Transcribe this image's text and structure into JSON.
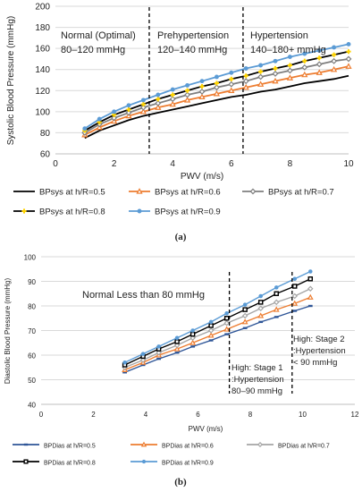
{
  "chart_data": [
    {
      "type": "line",
      "tag": "(a)",
      "xlabel": "PWV (m/s)",
      "ylabel": "Systolic Blood Pressure (mmHg)",
      "xlim": [
        0,
        10
      ],
      "ylim": [
        60,
        200
      ],
      "xticks": [
        0,
        2,
        4,
        6,
        8,
        10
      ],
      "yticks": [
        60,
        80,
        100,
        120,
        140,
        160,
        180,
        200
      ],
      "grid": "horizontal",
      "legend_position": "bottom",
      "x": [
        1,
        1.5,
        2,
        2.5,
        3,
        3.5,
        4,
        4.5,
        5,
        5.5,
        6,
        6.5,
        7,
        7.5,
        8,
        8.5,
        9,
        9.5,
        10
      ],
      "series": [
        {
          "name": "BPsys at h/R=0.5",
          "color": "#000000",
          "marker": "none",
          "values": [
            75,
            82,
            87,
            92,
            96,
            99,
            102,
            105,
            108,
            111,
            114,
            116,
            119,
            121,
            124,
            127,
            129,
            131,
            134
          ]
        },
        {
          "name": "BPsys at h/R=0.6",
          "color": "#ed7d31",
          "marker": "triangle",
          "values": [
            78,
            85,
            91,
            96,
            100,
            104,
            107,
            111,
            114,
            117,
            120,
            123,
            126,
            129,
            132,
            135,
            137,
            140,
            143
          ]
        },
        {
          "name": "BPsys at h/R=0.7",
          "color": "#7f7f7f",
          "marker": "diamond",
          "values": [
            80,
            88,
            94,
            99,
            104,
            108,
            112,
            116,
            119,
            123,
            126,
            129,
            133,
            136,
            139,
            142,
            145,
            148,
            150
          ]
        },
        {
          "name": "BPsys at h/R=0.8",
          "color": "#000000",
          "marker": "star",
          "values": [
            82,
            90,
            97,
            102,
            107,
            112,
            116,
            120,
            124,
            127,
            131,
            134,
            138,
            141,
            144,
            148,
            151,
            154,
            157
          ]
        },
        {
          "name": "BPsys at h/R=0.9",
          "color": "#5b9bd5",
          "marker": "circle",
          "values": [
            84,
            93,
            100,
            106,
            111,
            116,
            121,
            125,
            129,
            133,
            137,
            141,
            144,
            148,
            152,
            155,
            158,
            161,
            164
          ]
        }
      ],
      "dividers": [
        3.2,
        6.4
      ],
      "annotations": [
        {
          "line1": "Normal (Optimal)",
          "line2": "80–120 mmHg"
        },
        {
          "line1": "Prehypertension",
          "line2": "120–140 mmHg"
        },
        {
          "line1": "Hypertension",
          "line2": "140–180+ mmHg"
        }
      ]
    },
    {
      "type": "line",
      "tag": "(b)",
      "xlabel": "PWV (m/s)",
      "ylabel": "Diastolic Blood Pressure  (mmHg)",
      "xlim": [
        0,
        12
      ],
      "ylim": [
        40,
        100
      ],
      "xticks": [
        0,
        2,
        4,
        6,
        8,
        10,
        12
      ],
      "yticks": [
        40,
        50,
        60,
        70,
        80,
        90,
        100
      ],
      "grid": "horizontal",
      "legend_position": "bottom",
      "x": [
        3.2,
        3.9,
        4.5,
        5.2,
        5.8,
        6.5,
        7.1,
        7.8,
        8.4,
        9.0,
        9.7,
        10.3
      ],
      "series": [
        {
          "name": "BPDias at h/R=0.5",
          "color": "#2e5597",
          "marker": "dash",
          "values": [
            53,
            56,
            58.5,
            61,
            63.5,
            66,
            68.5,
            71,
            73.5,
            75.5,
            78,
            80
          ]
        },
        {
          "name": "BPDias at h/R=0.6",
          "color": "#ed7d31",
          "marker": "triangle",
          "values": [
            54,
            57,
            60,
            62.5,
            65,
            68,
            70.5,
            73.5,
            76,
            78.5,
            81,
            83.5
          ]
        },
        {
          "name": "BPDias at h/R=0.7",
          "color": "#a5a5a5",
          "marker": "diamond",
          "values": [
            55,
            58,
            61,
            64,
            67,
            70,
            73,
            76,
            79,
            81.5,
            84,
            87
          ]
        },
        {
          "name": "BPDias at h/R=0.8",
          "color": "#000000",
          "marker": "square",
          "values": [
            56,
            59.5,
            62.5,
            65.5,
            68.5,
            72,
            75,
            78.5,
            81.5,
            85,
            88,
            91
          ]
        },
        {
          "name": "BPDias at h/R=0.9",
          "color": "#5b9bd5",
          "marker": "circle",
          "values": [
            57,
            60.5,
            63.5,
            67,
            70,
            73.5,
            77,
            80.5,
            84,
            87.5,
            91,
            94
          ]
        }
      ],
      "dividers": [
        7.2,
        9.6
      ],
      "annotations": [
        {
          "line1": "Normal Less than 80 mmHg"
        },
        {
          "line1": "High: Stage 1",
          "line2": ":Hypertension",
          "line3": "80–90 mmHg"
        },
        {
          "line1": "High: Stage 2",
          "line2": ":Hypertension",
          "line3": "< 90 mmHg"
        }
      ]
    }
  ]
}
